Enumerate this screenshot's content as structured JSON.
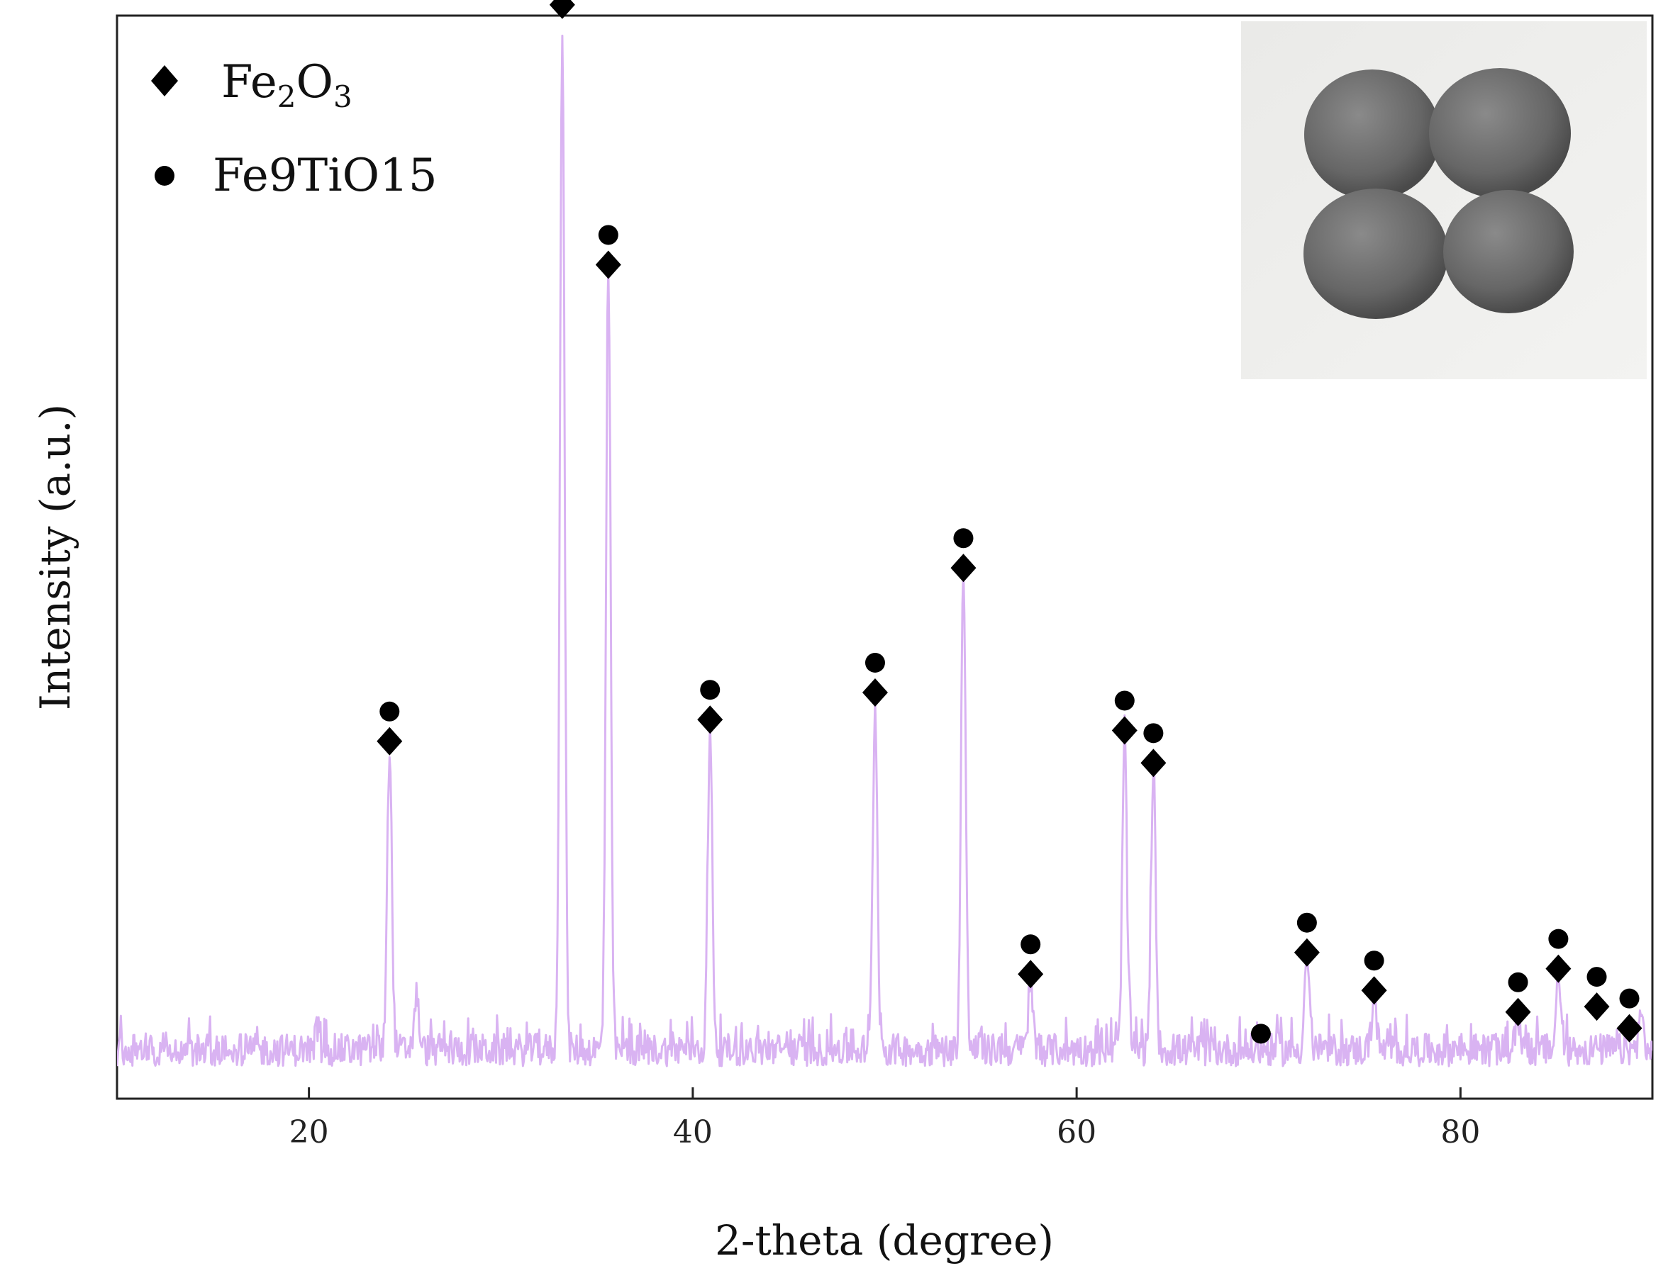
{
  "chart_data": {
    "type": "line",
    "title": "",
    "xlabel": "2-theta (degree)",
    "ylabel": "Intensity (a.u.)",
    "xlim": [
      10,
      90
    ],
    "ylim": [
      0,
      100
    ],
    "xticks": [
      20,
      40,
      60,
      80
    ],
    "grid": false,
    "legend": {
      "placement": "top-left",
      "entries": [
        {
          "marker": "diamond",
          "label_main": "Fe",
          "sub1": "2",
          "mid": "O",
          "sub2": "3"
        },
        {
          "marker": "circle",
          "label": "Fe9TiO15"
        }
      ]
    },
    "series": [
      {
        "color": "#d9b3f2",
        "baseline": 3,
        "noise_amplitude": 3,
        "peaks": [
          {
            "x": 24.2,
            "y": 31
          },
          {
            "x": 25.6,
            "y": 8
          },
          {
            "x": 33.2,
            "y": 98
          },
          {
            "x": 35.6,
            "y": 74
          },
          {
            "x": 40.9,
            "y": 32
          },
          {
            "x": 49.5,
            "y": 35
          },
          {
            "x": 54.1,
            "y": 47
          },
          {
            "x": 57.6,
            "y": 9
          },
          {
            "x": 62.5,
            "y": 32
          },
          {
            "x": 64.0,
            "y": 29
          },
          {
            "x": 69.6,
            "y": 3
          },
          {
            "x": 72.0,
            "y": 12
          },
          {
            "x": 75.5,
            "y": 8
          },
          {
            "x": 83.0,
            "y": 6
          },
          {
            "x": 85.1,
            "y": 10
          },
          {
            "x": 89.4,
            "y": 6
          }
        ]
      }
    ],
    "annotations": [
      {
        "x": 24.2,
        "y": 33,
        "markers": [
          "diamond",
          "circle"
        ]
      },
      {
        "x": 33.2,
        "y": 101,
        "markers": [
          "diamond",
          "circle"
        ]
      },
      {
        "x": 35.6,
        "y": 77,
        "markers": [
          "diamond",
          "circle"
        ]
      },
      {
        "x": 40.9,
        "y": 35,
        "markers": [
          "diamond",
          "circle"
        ]
      },
      {
        "x": 49.5,
        "y": 37.5,
        "markers": [
          "diamond",
          "circle"
        ]
      },
      {
        "x": 54.1,
        "y": 49,
        "markers": [
          "diamond",
          "circle"
        ]
      },
      {
        "x": 57.6,
        "y": 11.5,
        "markers": [
          "diamond",
          "circle"
        ]
      },
      {
        "x": 62.5,
        "y": 34,
        "markers": [
          "diamond",
          "circle"
        ]
      },
      {
        "x": 64.0,
        "y": 31,
        "markers": [
          "diamond",
          "circle"
        ]
      },
      {
        "x": 69.6,
        "y": 6,
        "markers": [
          "circle"
        ]
      },
      {
        "x": 72.0,
        "y": 13.5,
        "markers": [
          "diamond",
          "circle"
        ]
      },
      {
        "x": 75.5,
        "y": 10,
        "markers": [
          "diamond",
          "circle"
        ]
      },
      {
        "x": 83.0,
        "y": 8,
        "markers": [
          "diamond",
          "circle"
        ]
      },
      {
        "x": 85.1,
        "y": 12,
        "markers": [
          "diamond",
          "circle"
        ]
      },
      {
        "x": 87.1,
        "y": 8.5,
        "markers": [
          "diamond",
          "circle"
        ]
      },
      {
        "x": 88.8,
        "y": 6.5,
        "markers": [
          "diamond",
          "circle"
        ]
      }
    ],
    "inset": {
      "type": "photo",
      "placement": "top-right",
      "content": "four-grey-pellets"
    }
  },
  "colors": {
    "line": "#d9b3f2",
    "axis": "#222222",
    "marker": "#000000",
    "inset_background": "#efefed",
    "pellet": "#6f6f6f"
  }
}
